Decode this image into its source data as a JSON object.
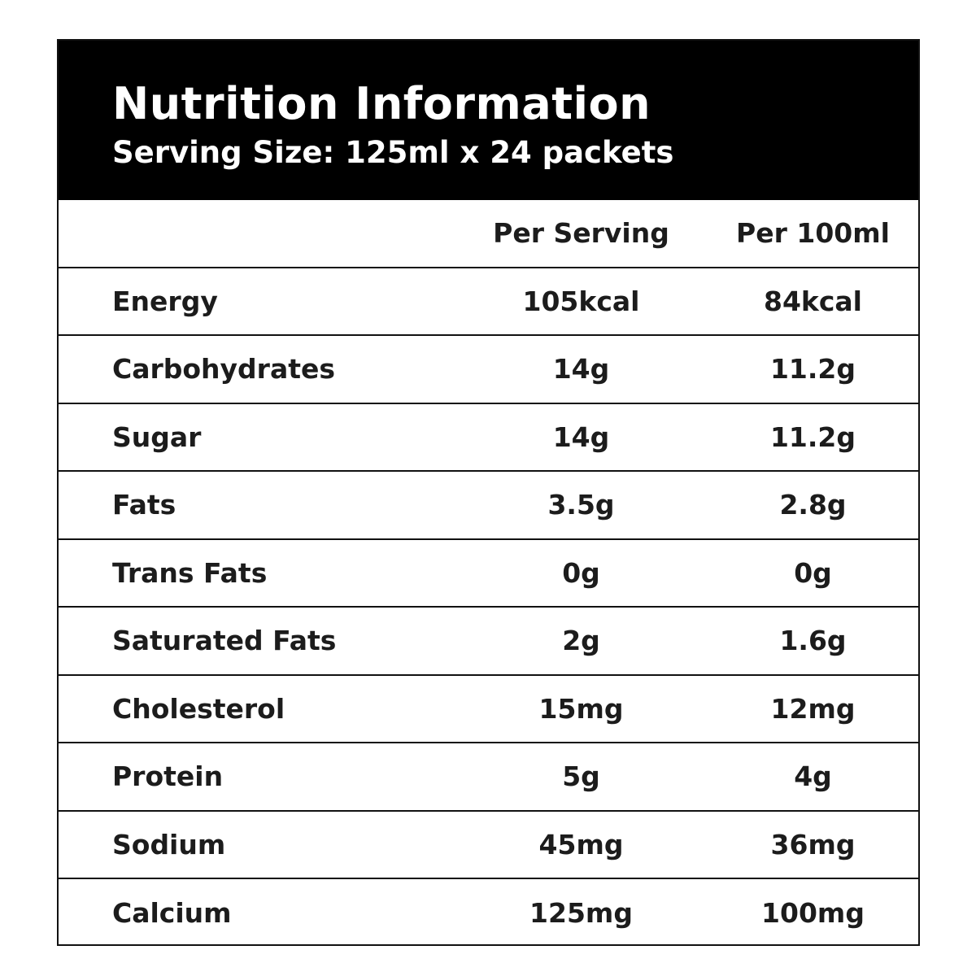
{
  "title": "Nutrition Information",
  "subtitle": "Serving Size: 125ml x 24 packets",
  "columns": {
    "per_serving": "Per Serving",
    "per_100ml": "Per 100ml"
  },
  "rows": [
    {
      "name": "Energy",
      "per_serving": "105kcal",
      "per_100ml": "84kcal"
    },
    {
      "name": "Carbohydrates",
      "per_serving": "14g",
      "per_100ml": "11.2g"
    },
    {
      "name": "Sugar",
      "per_serving": "14g",
      "per_100ml": "11.2g"
    },
    {
      "name": "Fats",
      "per_serving": "3.5g",
      "per_100ml": "2.8g"
    },
    {
      "name": "Trans Fats",
      "per_serving": "0g",
      "per_100ml": "0g"
    },
    {
      "name": "Saturated Fats",
      "per_serving": "2g",
      "per_100ml": "1.6g"
    },
    {
      "name": "Cholesterol",
      "per_serving": "15mg",
      "per_100ml": "12mg"
    },
    {
      "name": "Protein",
      "per_serving": "5g",
      "per_100ml": "4g"
    },
    {
      "name": "Sodium",
      "per_serving": "45mg",
      "per_100ml": "36mg"
    },
    {
      "name": "Calcium",
      "per_serving": "125mg",
      "per_100ml": "100mg"
    }
  ]
}
